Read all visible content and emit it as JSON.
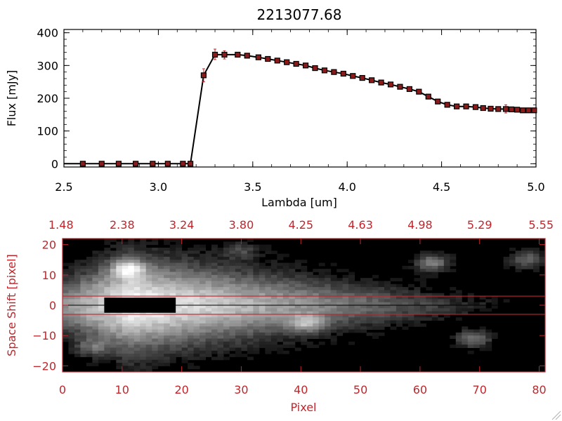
{
  "colors": {
    "accent_red": "#c0262c",
    "spectrum_line": "#000000",
    "marker_fill": "#8b1a1a",
    "errorbar": "#c0262c",
    "image_background": "#000000"
  },
  "chart_data": [
    {
      "type": "line",
      "title": "2213077.68",
      "xlabel": "Lambda [um]",
      "ylabel": "Flux [mJy]",
      "xlim": [
        2.5,
        5.0
      ],
      "ylim": [
        -10,
        410
      ],
      "x_ticks": [
        2.5,
        3.0,
        3.5,
        4.0,
        4.5,
        5.0
      ],
      "x_tick_labels": [
        "2.5",
        "3.0",
        "3.5",
        "4.0",
        "4.5",
        "5.0"
      ],
      "y_ticks": [
        0,
        100,
        200,
        300,
        400
      ],
      "y_tick_labels": [
        "0",
        "100",
        "200",
        "300",
        "400"
      ],
      "series": [
        {
          "x": [
            2.5,
            2.6,
            2.7,
            2.79,
            2.88,
            2.97,
            3.05,
            3.13,
            3.17,
            3.24,
            3.3,
            3.35,
            3.42,
            3.47,
            3.53,
            3.58,
            3.63,
            3.68,
            3.73,
            3.78,
            3.83,
            3.88,
            3.93,
            3.98,
            4.03,
            4.08,
            4.13,
            4.18,
            4.23,
            4.28,
            4.33,
            4.38,
            4.43,
            4.48,
            4.53,
            4.58,
            4.63,
            4.68,
            4.72,
            4.76,
            4.8,
            4.84,
            4.87,
            4.9,
            4.93,
            4.96,
            4.99
          ],
          "y": [
            0,
            0,
            0,
            0,
            0,
            0,
            0,
            0,
            0,
            270,
            333,
            333,
            333,
            330,
            325,
            320,
            315,
            310,
            305,
            300,
            292,
            285,
            280,
            275,
            268,
            262,
            255,
            248,
            242,
            235,
            228,
            220,
            205,
            190,
            180,
            175,
            175,
            173,
            170,
            168,
            167,
            167,
            166,
            165,
            163,
            163,
            163
          ],
          "errorbars": [
            {
              "x": 3.24,
              "low": 250,
              "high": 290
            },
            {
              "x": 3.3,
              "low": 318,
              "high": 350
            },
            {
              "x": 3.35,
              "low": 320,
              "high": 345
            },
            {
              "x": 4.84,
              "low": 155,
              "high": 180
            }
          ]
        }
      ]
    },
    {
      "type": "heatmap",
      "xlabel": "Pixel",
      "ylabel": "Space Shift [pixel]",
      "xlim": [
        0,
        81
      ],
      "ylim": [
        -22,
        22
      ],
      "x_ticks": [
        0,
        10,
        20,
        30,
        40,
        50,
        60,
        70,
        80
      ],
      "x_tick_labels": [
        "0",
        "10",
        "20",
        "30",
        "40",
        "50",
        "60",
        "70",
        "80"
      ],
      "y_ticks": [
        -20,
        -10,
        0,
        10,
        20
      ],
      "y_tick_labels": [
        "−20",
        "−10",
        "0",
        "10",
        "20"
      ],
      "top_axis_labels": [
        "1.48",
        "2.38",
        "3.24",
        "3.80",
        "4.25",
        "4.63",
        "4.98",
        "5.29",
        "5.55"
      ],
      "extraction_aperture": [
        -3,
        3
      ],
      "trace_center": 0,
      "blobs": [
        {
          "x": 11,
          "y": 12,
          "strength": 0.55
        },
        {
          "x": 30,
          "y": 18,
          "strength": 0.25
        },
        {
          "x": 41,
          "y": -6,
          "strength": 0.45
        },
        {
          "x": 62,
          "y": 14,
          "strength": 0.5
        },
        {
          "x": 69,
          "y": -11,
          "strength": 0.45
        },
        {
          "x": 78,
          "y": 15,
          "strength": 0.4
        },
        {
          "x": 5,
          "y": -14,
          "strength": 0.3
        }
      ],
      "saturated_region": {
        "x": [
          7,
          19
        ],
        "y": [
          -2.5,
          2.5
        ]
      }
    }
  ]
}
